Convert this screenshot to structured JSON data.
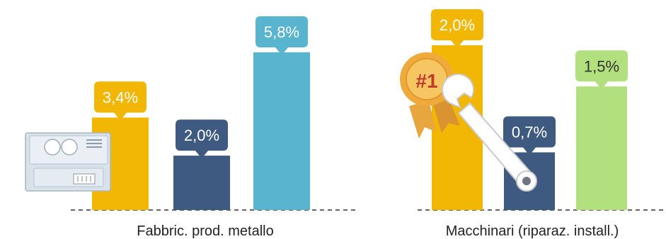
{
  "chart_data": [
    {
      "type": "bar",
      "categories": [
        "",
        "",
        ""
      ],
      "values": [
        3.4,
        2.0,
        5.8
      ],
      "value_labels": [
        "3,4%",
        "2,0%",
        "5,8%"
      ],
      "colors": [
        "#f2b705",
        "#3f5a80",
        "#58b4cf"
      ],
      "xlabel": "Fabbric. prod. metallo",
      "title": "",
      "ylabel": "",
      "ylim": [
        0,
        5.8
      ],
      "grid": false,
      "icon": "control-panel-icon"
    },
    {
      "type": "bar",
      "categories": [
        "",
        "",
        ""
      ],
      "values": [
        2.0,
        0.7,
        1.5
      ],
      "value_labels": [
        "2,0%",
        "0,7%",
        "1,5%"
      ],
      "colors": [
        "#f2b705",
        "#3f5a80",
        "#b2e07e"
      ],
      "xlabel": "Macchinari (riparaz. install.)",
      "title": "",
      "ylabel": "",
      "ylim": [
        0,
        2.0
      ],
      "grid": false,
      "icon": "award-ribbon-and-wrench-icon",
      "badge_text": "#1"
    }
  ],
  "colors": {
    "baseline": "#333333",
    "label_text": "#ffffff",
    "light_label_text": "#333333"
  }
}
